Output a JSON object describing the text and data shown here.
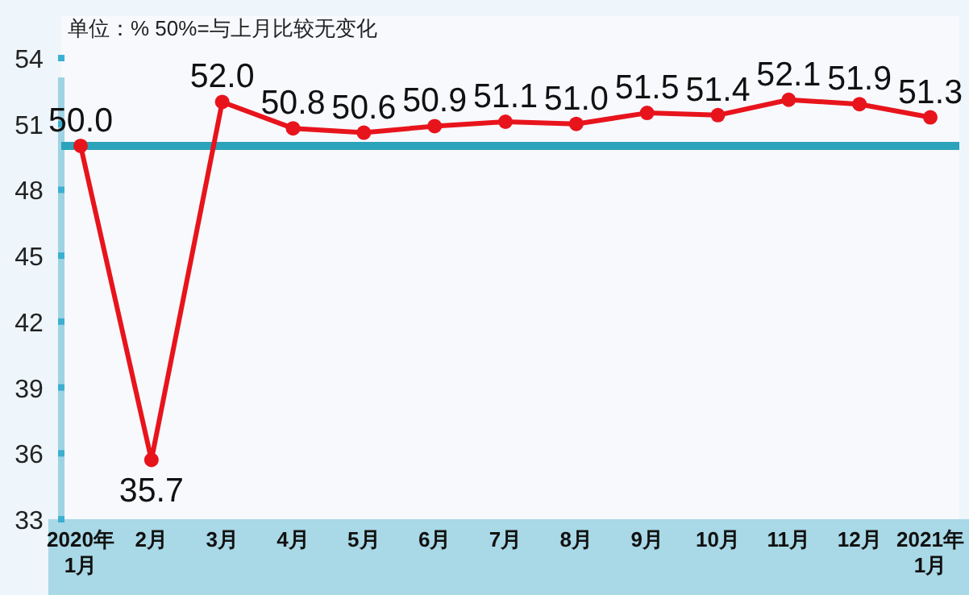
{
  "chart_data": {
    "type": "line",
    "annotations": [
      "单位：%  50%=与上月比较无变化"
    ],
    "categories": [
      "2020年\n1月",
      "2月",
      "3月",
      "4月",
      "5月",
      "6月",
      "7月",
      "8月",
      "9月",
      "10月",
      "11月",
      "12月",
      "2021年\n1月"
    ],
    "series": [
      {
        "color": "#e8141c",
        "values": [
          50.0,
          35.7,
          52.0,
          50.8,
          50.6,
          50.9,
          51.1,
          51.0,
          51.5,
          51.4,
          52.1,
          51.9,
          51.3
        ],
        "value_labels": [
          "50.0",
          "35.7",
          "52.0",
          "50.8",
          "50.6",
          "50.9",
          "51.1",
          "51.0",
          "51.5",
          "51.4",
          "52.1",
          "51.9",
          "51.3"
        ]
      }
    ],
    "ylim": [
      33,
      54
    ],
    "yticks": [
      33,
      36,
      39,
      42,
      45,
      48,
      51,
      54
    ],
    "ref_lines": [
      {
        "axis": "y",
        "value": 50,
        "color": "#2aa3bb"
      }
    ],
    "marker": "circle",
    "grid": false
  }
}
